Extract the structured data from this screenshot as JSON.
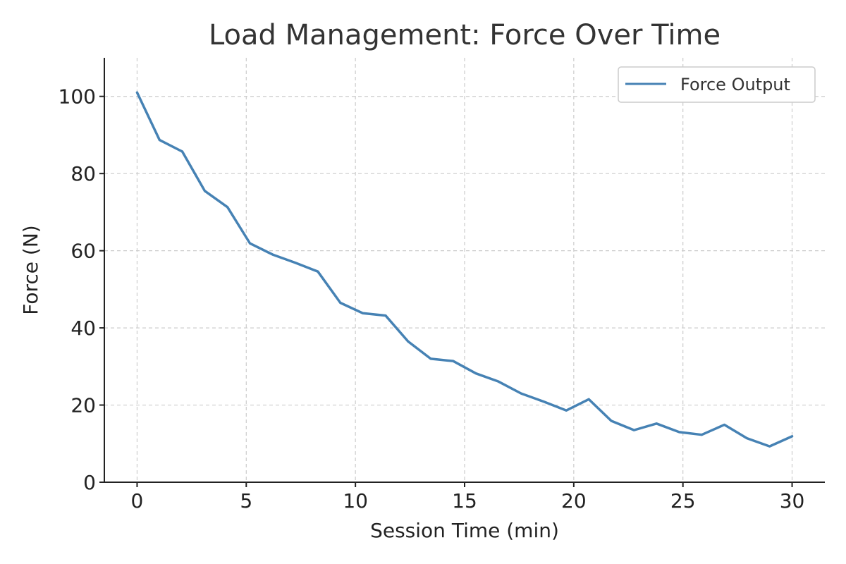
{
  "chart_data": {
    "type": "line",
    "title": "Load Management: Force Over Time",
    "xlabel": "Session Time (min)",
    "ylabel": "Force (N)",
    "xlim": [
      -1.5,
      31.5
    ],
    "ylim": [
      0,
      110
    ],
    "xticks": [
      0,
      5,
      10,
      15,
      20,
      25,
      30
    ],
    "yticks": [
      0,
      20,
      40,
      60,
      80,
      100
    ],
    "grid": true,
    "legend_position": "top-right",
    "series": [
      {
        "name": "Force Output",
        "color": "#4682b4",
        "x": [
          0,
          1.03,
          2.07,
          3.1,
          4.14,
          5.17,
          6.21,
          7.24,
          8.28,
          9.31,
          10.34,
          11.38,
          12.41,
          13.45,
          14.48,
          15.52,
          16.55,
          17.59,
          18.62,
          19.66,
          20.69,
          21.72,
          22.76,
          23.79,
          24.83,
          25.86,
          26.9,
          27.93,
          28.97,
          30
        ],
        "values": [
          101,
          88.7,
          85.7,
          75.5,
          71.3,
          61.9,
          59,
          56.9,
          54.6,
          46.5,
          43.8,
          43.2,
          36.5,
          32,
          31.4,
          28.2,
          26.1,
          23,
          20.9,
          18.6,
          21.5,
          15.9,
          13.5,
          15.2,
          13,
          12.3,
          14.9,
          11.4,
          9.3,
          11.9
        ]
      }
    ]
  }
}
